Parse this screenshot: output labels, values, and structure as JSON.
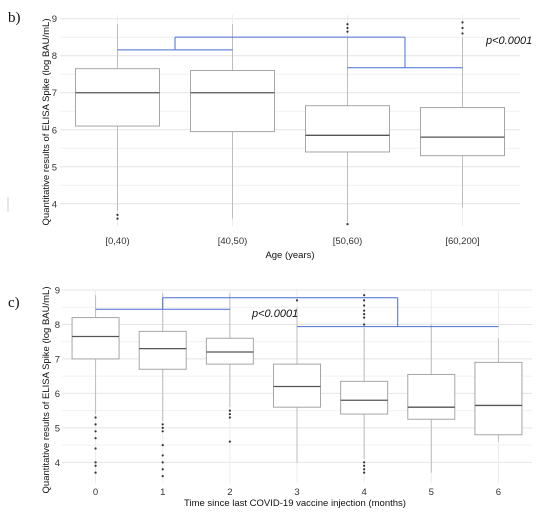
{
  "chart_data": [
    {
      "panel_label": "b)",
      "type": "boxplot",
      "xlabel": "Age (years)",
      "ylabel": "Quantitative results of ELISA Spike (log BAU/mL)",
      "ylim": [
        3.4,
        9.1
      ],
      "yticks": [
        "4",
        "5",
        "6",
        "7",
        "8",
        "9"
      ],
      "grid": true,
      "categories": [
        "[0,40)",
        "[40,50)",
        "[50,60)",
        "[60,200]"
      ],
      "boxes": [
        {
          "min": 3.8,
          "q1": 6.1,
          "median": 7.0,
          "q3": 7.65,
          "max": 8.85,
          "outliers": [
            3.6,
            3.7
          ]
        },
        {
          "min": 3.6,
          "q1": 5.95,
          "median": 7.0,
          "q3": 7.6,
          "max": 8.85,
          "outliers": []
        },
        {
          "min": 3.5,
          "q1": 5.4,
          "median": 5.85,
          "q3": 6.65,
          "max": 8.5,
          "outliers": [
            8.65,
            8.75,
            8.85,
            3.45
          ]
        },
        {
          "min": 3.9,
          "q1": 5.3,
          "median": 5.8,
          "q3": 6.6,
          "max": 8.5,
          "outliers": [
            8.6,
            8.75,
            8.9
          ]
        }
      ],
      "significance": {
        "text": "p<0.0001",
        "left_group": [
          "[0,40)",
          "[40,50)"
        ],
        "right_group": [
          "[50,60)",
          "[60,200]"
        ]
      }
    },
    {
      "panel_label": "c)",
      "type": "boxplot",
      "xlabel": "Time since last COVID-19 vaccine injection (months)",
      "ylabel": "Quantitative results of ELISA Spike (log BAU/mL)",
      "ylim": [
        3.4,
        9.0
      ],
      "yticks": [
        "4",
        "5",
        "6",
        "7",
        "8",
        "9"
      ],
      "grid": true,
      "categories": [
        "0",
        "1",
        "2",
        "3",
        "4",
        "5",
        "6"
      ],
      "boxes": [
        {
          "min": 5.4,
          "q1": 7.0,
          "median": 7.65,
          "q3": 8.2,
          "max": 8.85,
          "outliers": [
            5.3,
            5.1,
            4.9,
            4.7,
            4.4,
            4.0,
            3.9,
            3.7
          ]
        },
        {
          "min": 5.2,
          "q1": 6.7,
          "median": 7.3,
          "q3": 7.8,
          "max": 8.9,
          "outliers": [
            5.1,
            5.0,
            4.9,
            4.5,
            4.2,
            4.0,
            3.8,
            3.6
          ]
        },
        {
          "min": 5.6,
          "q1": 6.85,
          "median": 7.2,
          "q3": 7.6,
          "max": 8.9,
          "outliers": [
            5.5,
            5.4,
            5.3,
            4.6
          ]
        },
        {
          "min": 4.0,
          "q1": 5.6,
          "median": 6.2,
          "q3": 6.85,
          "max": 8.5,
          "outliers": [
            8.7
          ]
        },
        {
          "min": 4.1,
          "q1": 5.4,
          "median": 5.8,
          "q3": 6.35,
          "max": 7.9,
          "outliers": [
            8.0,
            8.2,
            8.3,
            8.4,
            8.55,
            8.7,
            8.85,
            4.0,
            3.9,
            3.8,
            3.7
          ]
        },
        {
          "min": 3.7,
          "q1": 5.25,
          "median": 5.6,
          "q3": 6.55,
          "max": 8.0,
          "outliers": []
        },
        {
          "min": 4.6,
          "q1": 4.8,
          "median": 5.65,
          "q3": 6.9,
          "max": 7.6,
          "outliers": []
        }
      ],
      "significance": {
        "text": "p<0.0001",
        "left_group": [
          "0",
          "1",
          "2"
        ],
        "right_group": [
          "3",
          "4",
          "5",
          "6"
        ]
      }
    }
  ]
}
